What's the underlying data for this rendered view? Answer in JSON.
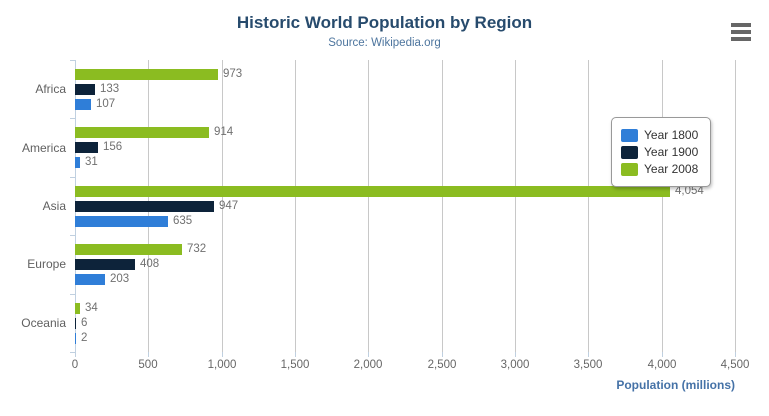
{
  "header": {
    "title": "Historic World Population by Region",
    "subtitle": "Source: Wikipedia.org"
  },
  "export_menu": {
    "icon": "hamburger-menu-icon",
    "color": "#666666"
  },
  "chart_data": {
    "type": "bar",
    "orientation": "horizontal",
    "title": "Historic World Population by Region",
    "subtitle": "Source: Wikipedia.org",
    "categories": [
      "Africa",
      "America",
      "Asia",
      "Europe",
      "Oceania"
    ],
    "series": [
      {
        "name": "Year 1800",
        "color": "#2f7ed8",
        "values": [
          107,
          31,
          635,
          203,
          2
        ]
      },
      {
        "name": "Year 1900",
        "color": "#0d233a",
        "values": [
          133,
          156,
          947,
          408,
          6
        ]
      },
      {
        "name": "Year 2008",
        "color": "#8bbc21",
        "values": [
          973,
          914,
          4054,
          732,
          34
        ]
      }
    ],
    "bar_order_top_to_bottom": [
      "Year 2008",
      "Year 1900",
      "Year 1800"
    ],
    "data_labels": true,
    "xlabel": "Population (millions)",
    "ylabel": "",
    "x_ticks": [
      0,
      500,
      1000,
      1500,
      2000,
      2500,
      3000,
      3500,
      4000,
      4500
    ],
    "xlim": [
      0,
      4500
    ],
    "grid": true,
    "legend_position": "right-inside",
    "legend_entries": [
      "Year 1800",
      "Year 1900",
      "Year 2008"
    ]
  },
  "style_colors": {
    "title": "#274b6d",
    "subtitle": "#4d759e",
    "axis_line": "#c0d0e0",
    "gridline": "#c8c8c8",
    "category_label": "#606060",
    "value_label": "#707070",
    "x_axis_title": "#4572a7"
  }
}
